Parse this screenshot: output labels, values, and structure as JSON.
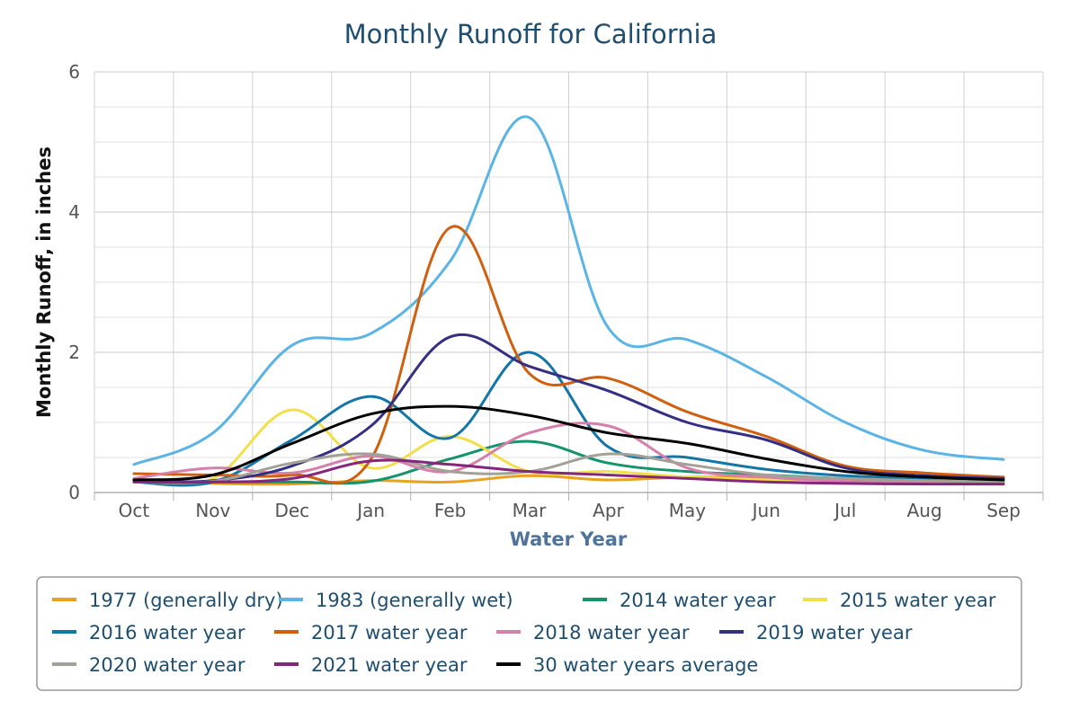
{
  "chart_data": {
    "type": "line",
    "title": "Monthly Runoff for California",
    "xlabel": "Water Year",
    "ylabel": "Monthly Runoff, in inches",
    "categories": [
      "Oct",
      "Nov",
      "Dec",
      "Jan",
      "Feb",
      "Mar",
      "Apr",
      "May",
      "Jun",
      "Jul",
      "Aug",
      "Sep"
    ],
    "ylim": [
      0,
      6
    ],
    "yticks": [
      0,
      2,
      4,
      6
    ],
    "grid": true,
    "legend_position": "bottom",
    "series": [
      {
        "name": "1977 (generally dry)",
        "color": "#e8a21d",
        "values": [
          0.18,
          0.13,
          0.12,
          0.17,
          0.15,
          0.24,
          0.18,
          0.22,
          0.2,
          0.17,
          0.14,
          0.12
        ]
      },
      {
        "name": "1983 (generally wet)",
        "color": "#5ab4e5",
        "values": [
          0.4,
          0.85,
          2.1,
          2.27,
          3.3,
          5.35,
          2.35,
          2.18,
          1.65,
          1.0,
          0.6,
          0.47
        ]
      },
      {
        "name": "2014 water year",
        "color": "#14946c",
        "values": [
          0.15,
          0.15,
          0.15,
          0.16,
          0.48,
          0.73,
          0.42,
          0.3,
          0.25,
          0.2,
          0.17,
          0.15
        ]
      },
      {
        "name": "2015 water year",
        "color": "#f1e04a",
        "values": [
          0.17,
          0.2,
          1.18,
          0.35,
          0.8,
          0.3,
          0.3,
          0.22,
          0.18,
          0.15,
          0.13,
          0.12
        ]
      },
      {
        "name": "2016 water year",
        "color": "#1476a7",
        "values": [
          0.15,
          0.15,
          0.75,
          1.37,
          0.78,
          2.0,
          0.65,
          0.5,
          0.33,
          0.24,
          0.2,
          0.17
        ]
      },
      {
        "name": "2017 water year",
        "color": "#d05f0e",
        "values": [
          0.27,
          0.25,
          0.25,
          0.48,
          3.78,
          1.7,
          1.63,
          1.15,
          0.8,
          0.38,
          0.28,
          0.22
        ]
      },
      {
        "name": "2018 water year",
        "color": "#d57fab",
        "values": [
          0.2,
          0.35,
          0.28,
          0.52,
          0.3,
          0.85,
          0.95,
          0.35,
          0.22,
          0.16,
          0.14,
          0.12
        ]
      },
      {
        "name": "2019 water year",
        "color": "#352f84",
        "values": [
          0.17,
          0.17,
          0.38,
          0.95,
          2.22,
          1.8,
          1.45,
          1.0,
          0.75,
          0.35,
          0.24,
          0.2
        ]
      },
      {
        "name": "2020 water year",
        "color": "#a2a196",
        "values": [
          0.15,
          0.16,
          0.42,
          0.55,
          0.3,
          0.3,
          0.55,
          0.4,
          0.25,
          0.2,
          0.17,
          0.15
        ]
      },
      {
        "name": "2021 water year",
        "color": "#84267c",
        "values": [
          0.15,
          0.15,
          0.2,
          0.45,
          0.4,
          0.3,
          0.25,
          0.2,
          0.15,
          0.13,
          0.12,
          0.12
        ]
      },
      {
        "name": "30 water years average",
        "color": "#000000",
        "values": [
          0.18,
          0.25,
          0.7,
          1.12,
          1.23,
          1.1,
          0.85,
          0.7,
          0.48,
          0.3,
          0.22,
          0.18
        ]
      }
    ]
  }
}
